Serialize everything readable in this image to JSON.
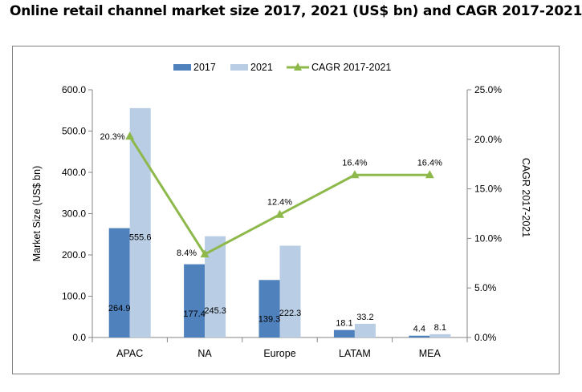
{
  "title": "Online retail channel market size 2017, 2021 (US$ bn) and CAGR 2017-2021",
  "chart_data": {
    "type": "bar",
    "categories": [
      "APAC",
      "NA",
      "Europe",
      "LATAM",
      "MEA"
    ],
    "series": [
      {
        "name": "2017",
        "values": [
          264.9,
          177.4,
          139.3,
          18.1,
          4.4
        ],
        "labels": [
          "264.9",
          "177.4",
          "139.3",
          "18.1",
          "4.4"
        ],
        "color": "#4f81bd"
      },
      {
        "name": "2021",
        "values": [
          555.6,
          245.3,
          222.3,
          33.2,
          8.1
        ],
        "labels": [
          "555.6",
          "245.3",
          "222.3",
          "33.2",
          "8.1"
        ],
        "color": "#b9cde5"
      }
    ],
    "line_series": {
      "name": "CAGR 2017-2021",
      "values": [
        20.3,
        8.4,
        12.4,
        16.4,
        16.4
      ],
      "labels": [
        "20.3%",
        "8.4%",
        "12.4%",
        "16.4%",
        "16.4%"
      ],
      "color": "#8db84a",
      "axis": "right"
    },
    "ylabel": "Market Size (US$ bn)",
    "y2label": "CAGR 2017-2021",
    "ylim": [
      0,
      600
    ],
    "y2lim": [
      0,
      25
    ],
    "yticks": [
      "0.0",
      "100.0",
      "200.0",
      "300.0",
      "400.0",
      "500.0",
      "600.0"
    ],
    "y2ticks": [
      "0.0%",
      "5.0%",
      "10.0%",
      "15.0%",
      "20.0%",
      "25.0%"
    ],
    "legend_position": "top",
    "grid": false
  }
}
